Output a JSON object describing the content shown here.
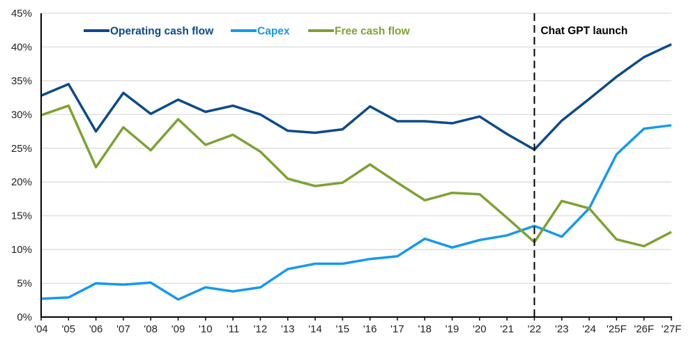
{
  "chart_data": {
    "type": "line",
    "title": "",
    "xlabel": "",
    "ylabel": "",
    "x": [
      "'04",
      "'05",
      "'06",
      "'07",
      "'08",
      "'09",
      "'10",
      "'11",
      "'12",
      "'13",
      "'14",
      "'15",
      "'16",
      "'17",
      "'18",
      "'19",
      "'20",
      "'21",
      "'22",
      "'23",
      "'24",
      "'25F",
      "'26F",
      "'27F"
    ],
    "ylim": [
      0,
      45
    ],
    "yticks": [
      0,
      5,
      10,
      15,
      20,
      25,
      30,
      35,
      40,
      45
    ],
    "ytick_labels": [
      "0%",
      "5%",
      "10%",
      "15%",
      "20%",
      "25%",
      "30%",
      "35%",
      "40%",
      "45%"
    ],
    "grid": "horizontal",
    "legend_position": "top-left",
    "series": [
      {
        "name": "Operating cash flow",
        "color": "#0B4A8B",
        "values": [
          32.8,
          34.5,
          27.5,
          33.2,
          30.1,
          32.2,
          30.4,
          31.3,
          30.0,
          27.6,
          27.3,
          27.8,
          31.2,
          29.0,
          29.0,
          28.7,
          29.7,
          27.1,
          24.8,
          29.1,
          32.3,
          35.6,
          38.5,
          40.4
        ]
      },
      {
        "name": "Capex",
        "color": "#1499F0",
        "values": [
          2.7,
          2.9,
          5.0,
          4.8,
          5.1,
          2.6,
          4.4,
          3.8,
          4.4,
          7.1,
          7.9,
          7.9,
          8.6,
          9.0,
          11.6,
          10.3,
          11.4,
          12.1,
          13.5,
          11.9,
          16.1,
          24.1,
          27.9,
          28.4
        ]
      },
      {
        "name": "Free cash flow",
        "color": "#7DA232",
        "values": [
          29.9,
          31.3,
          22.2,
          28.1,
          24.7,
          29.3,
          25.5,
          27.0,
          24.5,
          20.5,
          19.4,
          19.9,
          22.6,
          19.9,
          17.3,
          18.4,
          18.2,
          14.7,
          11.1,
          17.2,
          16.1,
          11.5,
          10.5,
          12.6
        ]
      }
    ],
    "annotations": [
      {
        "type": "vertical-dashed-line",
        "x": "'22",
        "label": "Chat GPT launch"
      }
    ]
  }
}
